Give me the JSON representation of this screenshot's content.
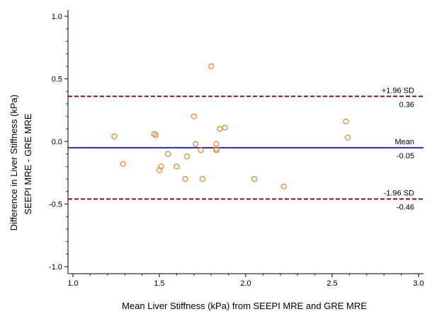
{
  "chart_data": {
    "type": "scatter",
    "title": "",
    "xlabel": "Mean Liver Stiffness (kPa) from SEEPI MRE and GRE MRE",
    "ylabel_lines": [
      "Difference in Liver Stiffness (kPa)",
      "SEEPI MRE - GRE MRE"
    ],
    "xlim": [
      1.0,
      3.0
    ],
    "ylim": [
      -1.0,
      1.0
    ],
    "xticks": [
      1.0,
      1.5,
      2.0,
      2.5,
      3.0
    ],
    "xtick_labels": [
      "1.0",
      "1.5",
      "2.0",
      "2.5",
      "3.0"
    ],
    "yticks": [
      -1.0,
      -0.5,
      0.0,
      0.5,
      1.0
    ],
    "ytick_labels": [
      "-1.0",
      "-0.5",
      "0.0",
      "0.5",
      "1.0"
    ],
    "grid": false,
    "points": [
      {
        "x": 1.24,
        "y": 0.04
      },
      {
        "x": 1.29,
        "y": -0.18
      },
      {
        "x": 1.47,
        "y": 0.06
      },
      {
        "x": 1.48,
        "y": 0.05
      },
      {
        "x": 1.5,
        "y": -0.23
      },
      {
        "x": 1.51,
        "y": -0.2
      },
      {
        "x": 1.55,
        "y": -0.1
      },
      {
        "x": 1.6,
        "y": -0.2
      },
      {
        "x": 1.65,
        "y": -0.3
      },
      {
        "x": 1.66,
        "y": -0.12
      },
      {
        "x": 1.7,
        "y": 0.2
      },
      {
        "x": 1.71,
        "y": -0.02
      },
      {
        "x": 1.74,
        "y": -0.07
      },
      {
        "x": 1.75,
        "y": -0.3
      },
      {
        "x": 1.8,
        "y": 0.6
      },
      {
        "x": 1.83,
        "y": -0.06
      },
      {
        "x": 1.83,
        "y": -0.07
      },
      {
        "x": 1.83,
        "y": -0.02
      },
      {
        "x": 1.85,
        "y": 0.1
      },
      {
        "x": 1.88,
        "y": 0.11
      },
      {
        "x": 2.05,
        "y": -0.3
      },
      {
        "x": 2.22,
        "y": -0.36
      },
      {
        "x": 2.58,
        "y": 0.16
      },
      {
        "x": 2.59,
        "y": 0.03
      }
    ],
    "reference_lines": [
      {
        "name": "upper-limit",
        "y": 0.36,
        "label": "+1.96 SD",
        "value_label": "0.36",
        "style": "dashed",
        "color": "#7a1a1a"
      },
      {
        "name": "mean",
        "y": -0.05,
        "label": "Mean",
        "value_label": "-0.05",
        "style": "solid",
        "color": "#2b2ba8"
      },
      {
        "name": "lower-limit",
        "y": -0.46,
        "label": "-1.96 SD",
        "value_label": "-0.46",
        "style": "dashed",
        "color": "#7a1a1a"
      }
    ],
    "colors": {
      "points": "#e8893a",
      "axis": "#000000"
    }
  }
}
